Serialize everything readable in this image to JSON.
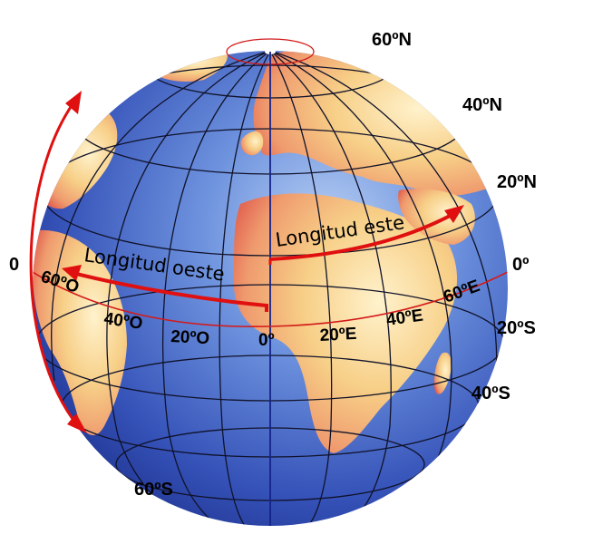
{
  "colors": {
    "ocean": "#2f4fb5",
    "ocean_light": "#8fb2ee",
    "land": "#f2d28e",
    "land_edge": "#e2604e",
    "grid": "#1a1a2e",
    "equator": "#d31a1a",
    "arrow": "#e01010",
    "prime_meridian": "#15238a"
  },
  "latitude_labels": {
    "n60": "60ºN",
    "n40": "40ºN",
    "n20": "20ºN",
    "eq": "0º",
    "s20": "20ºS",
    "s40": "40ºS",
    "s60": "60ºS",
    "left_zero": "0"
  },
  "longitude_labels": {
    "w60": "60ºO",
    "w40": "40ºO",
    "w20": "20ºO",
    "zero": "0º",
    "e20": "20ºE",
    "e40": "40ºE",
    "e60": "60ºE"
  },
  "arrows": {
    "east": "Longitud este",
    "west": "Longitud oeste"
  }
}
